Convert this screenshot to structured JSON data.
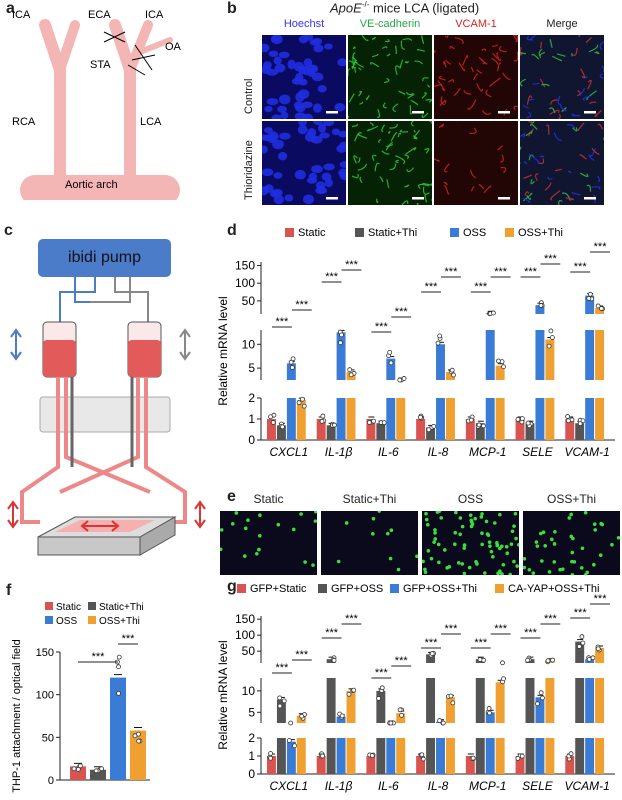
{
  "panels": {
    "a": {
      "label": "a",
      "vessels": {
        "ICA_left": "ICA",
        "ECA": "ECA",
        "ICA_right": "ICA",
        "OA": "OA",
        "STA": "STA",
        "RCA": "RCA",
        "LCA": "LCA",
        "arch": "Aortic arch"
      }
    },
    "b": {
      "label": "b",
      "title_gene": "ApoE",
      "title_sup": "-/-",
      "title_rest": " mice  LCA (ligated)",
      "columns": [
        "Hoechst",
        "VE-cadherin",
        "VCAM-1",
        "Merge"
      ],
      "column_colors": [
        "#3333ff",
        "#22aa44",
        "#dd2222",
        "#222222"
      ],
      "rows": [
        "Control",
        "Thioridazine"
      ]
    },
    "c": {
      "label": "c",
      "pump": "ibidi pump"
    },
    "d": {
      "label": "d",
      "ylabel": "Relative mRNA level",
      "legend": [
        "Static",
        "Static+Thi",
        "OSS",
        "OSS+Thi"
      ],
      "colors": [
        "#d9534f",
        "#555555",
        "#3a7bd5",
        "#f0a030"
      ],
      "genes": [
        "CXCL1",
        "IL-1β",
        "IL-6",
        "IL-8",
        "MCP-1",
        "SELE",
        "VCAM-1"
      ],
      "yticks_bottom": [
        "0",
        "1",
        "2"
      ],
      "yticks_mid": [
        "5",
        "10"
      ],
      "yticks_top": [
        "50",
        "100",
        "150"
      ],
      "sig": "***",
      "chart_data": {
        "type": "bar",
        "categories": [
          "CXCL1",
          "IL-1β",
          "IL-6",
          "IL-8",
          "MCP-1",
          "SELE",
          "VCAM-1"
        ],
        "series": [
          {
            "name": "Static",
            "values": [
              1,
              1,
              1,
              1,
              1,
              1,
              1
            ]
          },
          {
            "name": "Static+Thi",
            "values": [
              0.7,
              0.7,
              0.8,
              0.6,
              0.8,
              0.8,
              0.8
            ]
          },
          {
            "name": "OSS",
            "values": [
              6,
              12.5,
              7,
              10,
              15,
              38,
              65
            ]
          },
          {
            "name": "OSS+Thi",
            "values": [
              1.9,
              4.2,
              2.4,
              4.2,
              5.5,
              11,
              30
            ]
          }
        ],
        "ylabel": "Relative mRNA level"
      }
    },
    "e": {
      "label": "e",
      "columns": [
        "Static",
        "Static+Thi",
        "OSS",
        "OSS+Thi"
      ],
      "cell_counts": [
        18,
        10,
        75,
        38
      ]
    },
    "f": {
      "label": "f",
      "ylabel": "THP-1 attachment / optical field",
      "legend": [
        "Static",
        "Static+Thi",
        "OSS",
        "OSS+Thi"
      ],
      "colors": [
        "#d9534f",
        "#555555",
        "#3a7bd5",
        "#f0a030"
      ],
      "yticks": [
        "0",
        "50",
        "100",
        "150"
      ],
      "sig": "***",
      "chart_data": {
        "type": "bar",
        "categories": [
          "Static",
          "Static+Thi",
          "OSS",
          "OSS+Thi"
        ],
        "values": [
          16,
          12,
          120,
          58
        ],
        "ylim": [
          0,
          150
        ],
        "ylabel": "THP-1 attachment / optical field"
      }
    },
    "g": {
      "label": "g",
      "ylabel": "Relative mRNA level",
      "legend": [
        "GFP+Static",
        "GFP+OSS",
        "GFP+OSS+Thi",
        "CA-YAP+OSS+Thi"
      ],
      "colors": [
        "#d9534f",
        "#555555",
        "#3a7bd5",
        "#f0a030"
      ],
      "genes": [
        "CXCL1",
        "IL-1β",
        "IL-6",
        "IL-8",
        "MCP-1",
        "SELE",
        "VCAM-1"
      ],
      "yticks_bottom": [
        "0",
        "1",
        "2"
      ],
      "yticks_mid": [
        "5",
        "10"
      ],
      "yticks_top": [
        "50",
        "100",
        "150"
      ],
      "sig": "***",
      "chart_data": {
        "type": "bar",
        "categories": [
          "CXCL1",
          "IL-1β",
          "IL-6",
          "IL-8",
          "MCP-1",
          "SELE",
          "VCAM-1"
        ],
        "series": [
          {
            "name": "GFP+Static",
            "values": [
              1,
              1,
              1,
              1,
              1,
              1,
              1
            ]
          },
          {
            "name": "GFP+OSS",
            "values": [
              8,
              25,
              10,
              40,
              25,
              25,
              80
            ]
          },
          {
            "name": "GFP+OSS+Thi",
            "values": [
              1.8,
              4,
              2.5,
              2.8,
              5,
              8.5,
              25
            ]
          },
          {
            "name": "CA-YAP+OSS+Thi",
            "values": [
              4.2,
              10,
              4.8,
              8.5,
              12,
              20,
              60
            ]
          }
        ],
        "ylabel": "Relative mRNA level"
      }
    }
  }
}
